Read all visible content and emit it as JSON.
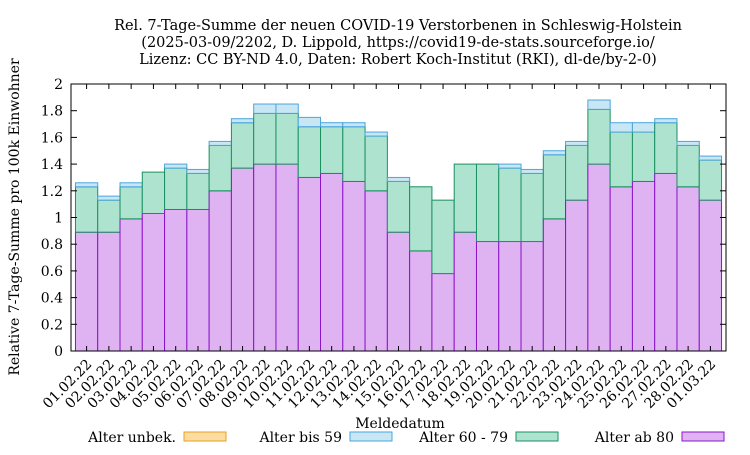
{
  "title_lines": [
    "Rel. 7-Tage-Summe der neuen COVID-19 Verstorbenen in Schleswig-Holstein",
    "(2025-03-09/2202, D. Lippold, https://covid19-de-stats.sourceforge.io/",
    "Lizenz: CC BY-ND 4.0, Daten: Robert Koch-Institut (RKI), dl-de/by-2-0)"
  ],
  "chart_data": {
    "type": "bar",
    "stacked": true,
    "xlabel": "Meldedatum",
    "ylabel": "Relative 7-Tage-Summe pro 100k Einwohner",
    "ylim": [
      0,
      2
    ],
    "yticks": [
      0,
      0.2,
      0.4,
      0.6,
      0.8,
      1,
      1.2,
      1.4,
      1.6,
      1.8,
      2
    ],
    "ytick_labels": [
      "0",
      "0.2",
      "0.4",
      "0.6",
      "0.8",
      "1",
      "1.2",
      "1.4",
      "1.6",
      "1.8",
      "2"
    ],
    "grid": false,
    "legend_position": "bottom",
    "categories": [
      "01.02.22",
      "02.02.22",
      "03.02.22",
      "04.02.22",
      "05.02.22",
      "06.02.22",
      "07.02.22",
      "08.02.22",
      "09.02.22",
      "10.02.22",
      "11.02.22",
      "12.02.22",
      "13.02.22",
      "14.02.22",
      "15.02.22",
      "16.02.22",
      "17.02.22",
      "18.02.22",
      "19.02.22",
      "20.02.22",
      "21.02.22",
      "22.02.22",
      "23.02.22",
      "24.02.22",
      "25.02.22",
      "26.02.22",
      "27.02.22",
      "28.02.22",
      "01.03.22"
    ],
    "series": [
      {
        "name": "Alter ab 80",
        "fill": "#dfb3f2",
        "stroke": "#8a14c8",
        "values": [
          0.89,
          0.89,
          0.99,
          1.03,
          1.06,
          1.06,
          1.2,
          1.37,
          1.4,
          1.4,
          1.3,
          1.33,
          1.27,
          1.2,
          0.89,
          0.75,
          0.58,
          0.89,
          0.82,
          0.82,
          0.82,
          0.99,
          1.13,
          1.4,
          1.23,
          1.27,
          1.33,
          1.23,
          1.13
        ]
      },
      {
        "name": "Alter 60 - 79",
        "fill": "#aee3cf",
        "stroke": "#1a9060",
        "values": [
          0.34,
          0.24,
          0.24,
          0.31,
          0.31,
          0.27,
          0.34,
          0.34,
          0.38,
          0.38,
          0.38,
          0.35,
          0.41,
          0.41,
          0.38,
          0.48,
          0.55,
          0.51,
          0.58,
          0.55,
          0.51,
          0.48,
          0.41,
          0.41,
          0.41,
          0.37,
          0.38,
          0.31,
          0.3
        ]
      },
      {
        "name": "Alter bis 59",
        "fill": "#c9e6f5",
        "stroke": "#4aa6dd",
        "values": [
          0.03,
          0.03,
          0.03,
          0,
          0.03,
          0.03,
          0.03,
          0.03,
          0.07,
          0.07,
          0.07,
          0.03,
          0.03,
          0.03,
          0.03,
          0,
          0,
          0,
          0,
          0.03,
          0.03,
          0.03,
          0.03,
          0.07,
          0.07,
          0.07,
          0.03,
          0.03,
          0.03
        ]
      },
      {
        "name": "Alter unbek.",
        "fill": "#fcdca0",
        "stroke": "#e8a020",
        "values": [
          0,
          0,
          0,
          0,
          0,
          0,
          0,
          0,
          0,
          0,
          0,
          0,
          0,
          0,
          0,
          0,
          0,
          0,
          0,
          0,
          0,
          0,
          0,
          0,
          0,
          0,
          0,
          0,
          0
        ]
      }
    ],
    "legend_order": [
      "Alter unbek.",
      "Alter bis 59",
      "Alter 60 - 79",
      "Alter ab 80"
    ]
  }
}
